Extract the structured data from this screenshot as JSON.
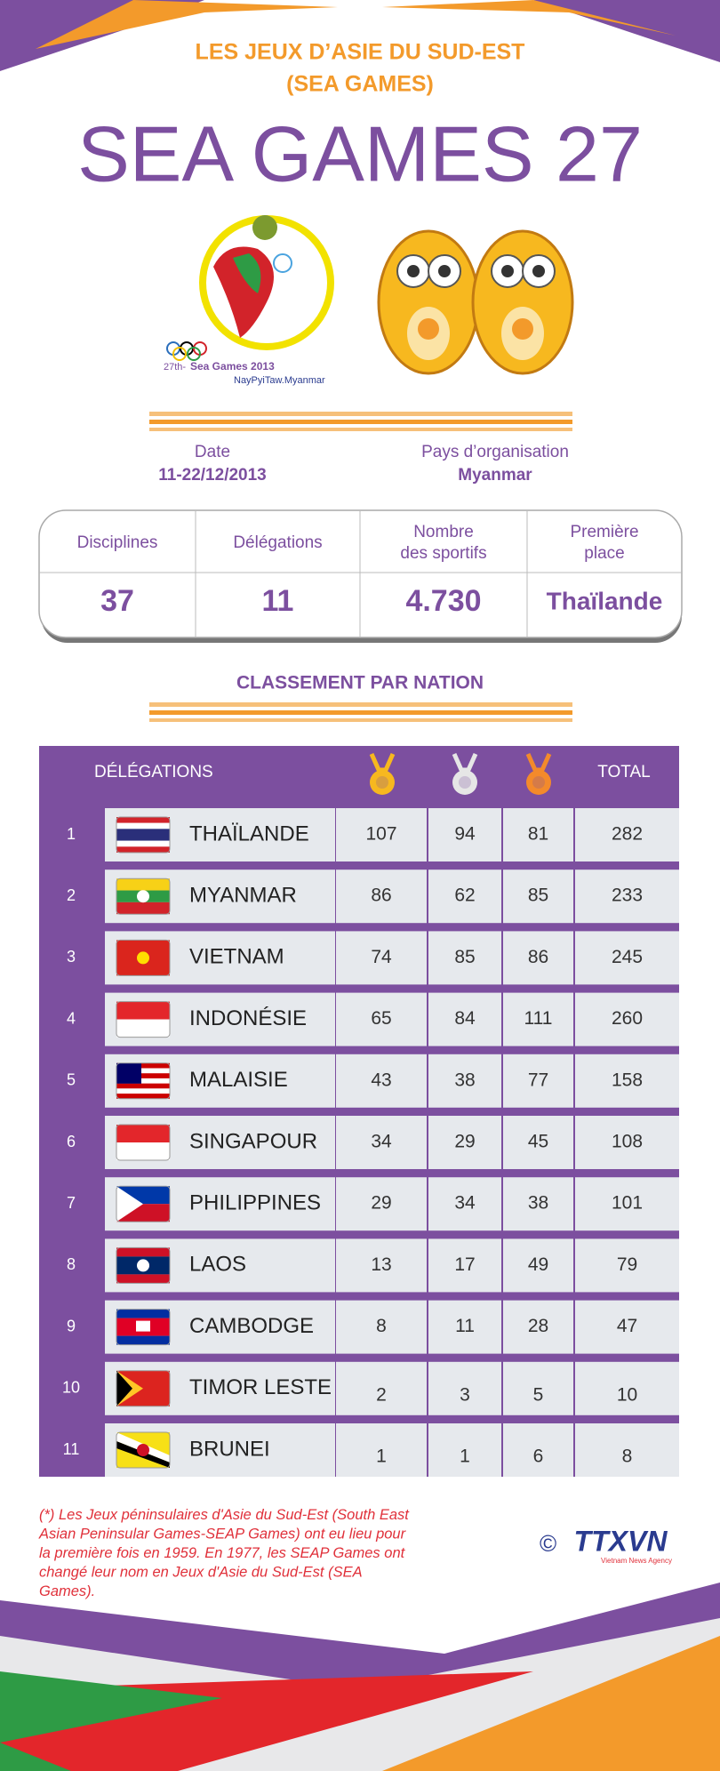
{
  "header": {
    "kicker": [
      "LES JEUX D’ASIE DU SUD-EST",
      "(SEA GAMES)"
    ],
    "title": "SEA GAMES 27"
  },
  "logo": {
    "edition": "27th-",
    "name": "Sea Games 2013",
    "place": "NayPyiTaw.Myanmar"
  },
  "info": {
    "date_label": "Date",
    "date": "11-22/12/2013",
    "host_label": "Pays d’organisation",
    "host": "Myanmar"
  },
  "stats": {
    "headers": [
      [
        "Disciplines"
      ],
      [
        "Délégations"
      ],
      [
        "Nombre",
        "des sportifs"
      ],
      [
        "Première",
        "place"
      ]
    ],
    "values": [
      "37",
      "11",
      "4.730",
      "Thaïlande"
    ]
  },
  "ranking": {
    "title": "CLASSEMENT PAR NATION",
    "header": {
      "delegations": "DÉLÉGATIONS",
      "total": "TOTAL"
    },
    "rows": [
      [
        1,
        "THAÏLANDE",
        107,
        94,
        81,
        282
      ],
      [
        2,
        "MYANMAR",
        86,
        62,
        85,
        233
      ],
      [
        3,
        "VIETNAM",
        74,
        85,
        86,
        245
      ],
      [
        4,
        "INDONÉSIE",
        65,
        84,
        111,
        260
      ],
      [
        5,
        "MALAISIE",
        43,
        38,
        77,
        158
      ],
      [
        6,
        "SINGAPOUR",
        34,
        29,
        45,
        108
      ],
      [
        7,
        "PHILIPPINES",
        29,
        34,
        38,
        101
      ],
      [
        8,
        "LAOS",
        13,
        17,
        49,
        79
      ],
      [
        9,
        "CAMBODGE",
        8,
        11,
        28,
        47
      ],
      [
        10,
        "TIMOR LESTE",
        2,
        3,
        5,
        10
      ],
      [
        11,
        "BRUNEI",
        1,
        1,
        6,
        8
      ]
    ]
  },
  "footnote": [
    "(*) Les Jeux péninsulaires d'Asie du Sud-Est (South East",
    "Asian Peninsular Games-SEAP Games) ont eu lieu pour",
    "la première fois en 1959. En 1977, les SEAP Games ont",
    "changé leur nom en Jeux d'Asie du Sud-Est (SEA",
    "Games)."
  ],
  "credit": {
    "symbol": "©",
    "agency": "TTXVN",
    "sub": "Vietnam News Agency"
  }
}
